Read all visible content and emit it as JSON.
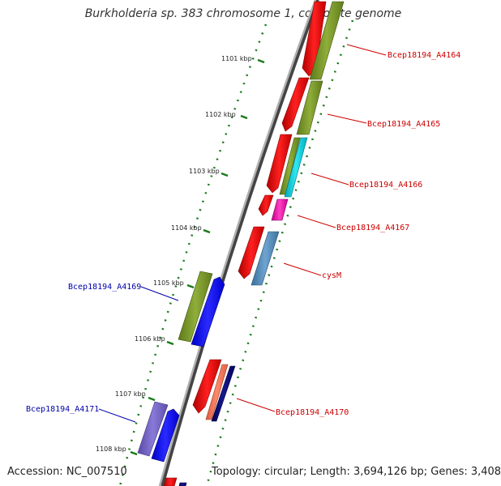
{
  "title": "Burkholderia sp. 383 chromosome 1, complete genome",
  "accession": "Accession: NC_007510",
  "summary": "Topology: circular; Length: 3,694,126 bp; Genes: 3,408",
  "colors": {
    "label_forward": "#cc0000",
    "label_reverse": "#0000aa",
    "backbone": "#888888",
    "tick": "#1a7a1a"
  },
  "kbp_labels": [
    "1101 kbp",
    "1102 kbp",
    "1103 kbp",
    "1104 kbp",
    "1105 kbp",
    "1106 kbp",
    "1107 kbp",
    "1108 kbp"
  ],
  "gene_labels": [
    "Bcep18194_A4164",
    "Bcep18194_A4165",
    "Bcep18194_A4166",
    "Bcep18194_A4167",
    "cysM",
    "Bcep18194_A4169",
    "Bcep18194_A4170",
    "Bcep18194_A4171"
  ]
}
